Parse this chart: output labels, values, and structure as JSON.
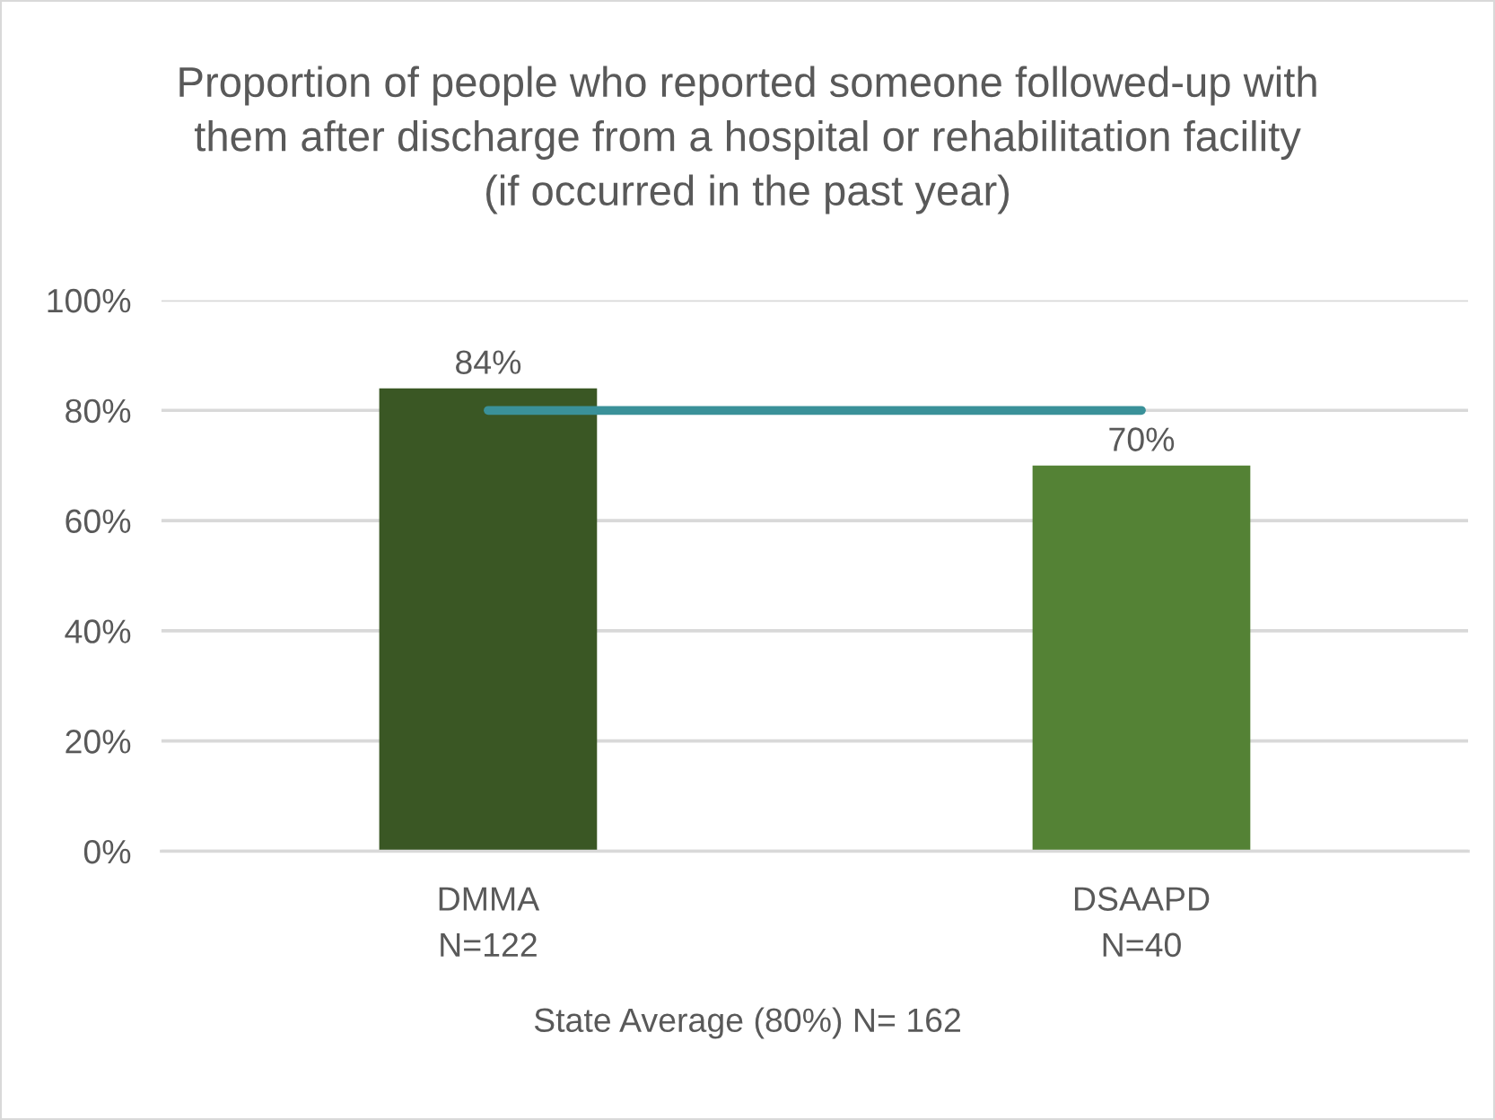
{
  "chart_data": {
    "type": "bar",
    "title": "Proportion of people who reported someone followed-up with\nthem after discharge from a hospital or rehabilitation facility\n(if occurred in the past year)",
    "xlabel": "State Average (80%) N= 162",
    "categories": [
      "DMMA\nN=122",
      "DSAAPD\nN=40"
    ],
    "series": [
      {
        "values": [
          84,
          70
        ],
        "colors": [
          "#3a5724",
          "#548235"
        ],
        "value_labels": [
          "84%",
          "70%"
        ]
      },
      {
        "type": "line",
        "values": [
          80,
          80
        ],
        "color": "#3a9199"
      }
    ],
    "ylim": [
      0,
      100
    ],
    "yticks": [
      {
        "value": 0,
        "label": "0%"
      },
      {
        "value": 20,
        "label": "20%"
      },
      {
        "value": 40,
        "label": "40%"
      },
      {
        "value": 60,
        "label": "60%"
      },
      {
        "value": 80,
        "label": "80%"
      },
      {
        "value": 100,
        "label": "100%"
      }
    ],
    "grid": "y"
  }
}
